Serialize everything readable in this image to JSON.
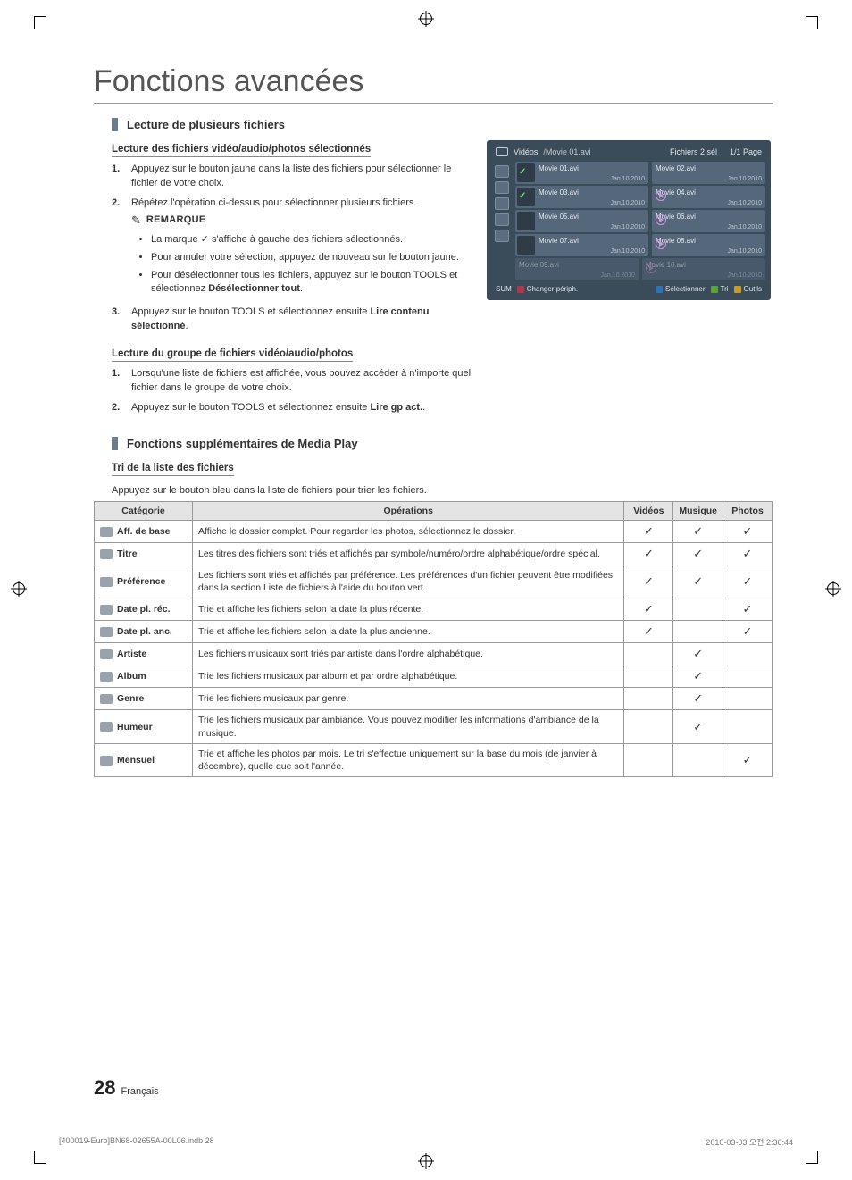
{
  "colors": {
    "section_bar": "#6b7c8c",
    "table_header_bg": "#e4e4e4",
    "table_border": "#999999",
    "screenshot_bg": "#3a4b5a",
    "screenshot_cell": "#55677a",
    "check_green": "#6be06b"
  },
  "header": {
    "title": "Fonctions avancées"
  },
  "section1": {
    "title": "Lecture de plusieurs fichiers",
    "sub1": "Lecture des fichiers vidéo/audio/photos sélectionnés",
    "steps1": {
      "n1": "1.",
      "s1": "Appuyez sur le bouton jaune dans la liste des fichiers pour sélectionner le fichier de votre choix.",
      "n2": "2.",
      "s2": "Répétez l'opération ci-dessus pour sélectionner plusieurs fichiers.",
      "remarque": "REMARQUE",
      "note1_pre": "La marque ",
      "note1_post": " s'affiche à gauche des fichiers sélectionnés.",
      "note2": "Pour annuler votre sélection, appuyez de nouveau sur le bouton jaune.",
      "note3_pre": "Pour désélectionner tous les fichiers, appuyez sur le bouton ",
      "note3_tools": "TOOLS",
      "note3_mid": " et sélectionnez ",
      "note3_b": "Désélectionner tout",
      "note3_post": ".",
      "n3": "3.",
      "s3_pre": "Appuyez sur le bouton ",
      "s3_tools": "TOOLS",
      "s3_mid": " et sélectionnez ensuite ",
      "s3_b": "Lire contenu sélectionné",
      "s3_post": "."
    },
    "sub2": "Lecture du groupe de fichiers vidéo/audio/photos",
    "steps2": {
      "n1": "1.",
      "s1": "Lorsqu'une liste de fichiers est affichée, vous pouvez accéder à n'importe quel fichier dans le groupe de votre choix.",
      "n2": "2.",
      "s2_pre": "Appuyez sur le bouton ",
      "s2_tools": "TOOLS",
      "s2_mid": " et sélectionnez ensuite ",
      "s2_b": "Lire gp act.",
      "s2_post": "."
    }
  },
  "screenshot": {
    "top": {
      "videos": "Vidéos",
      "path": "/Movie 01.avi",
      "sel": "Fichiers 2 sél",
      "page": "1/1 Page"
    },
    "rows": [
      {
        "l": "Movie 01.avi",
        "ld": "Jan.10.2010",
        "lthumb": true,
        "ltick": true,
        "r": "Movie 02.avi",
        "rd": "Jan.10.2010",
        "rplay": false
      },
      {
        "l": "Movie 03.avi",
        "ld": "Jan.10.2010",
        "lthumb": true,
        "ltick": true,
        "r": "Movie 04.avi",
        "rd": "Jan.10.2010",
        "rplay": true
      },
      {
        "l": "Movie 05.avi",
        "ld": "Jan.10.2010",
        "lthumb": true,
        "ltick": false,
        "r": "Movie 06.avi",
        "rd": "Jan.10.2010",
        "rplay": true
      },
      {
        "l": "Movie 07.avi",
        "ld": "Jan.10.2010",
        "lthumb": true,
        "ltick": false,
        "r": "Movie 08.avi",
        "rd": "Jan.10.2010",
        "rplay": true
      },
      {
        "l": "Movie 09.avi",
        "ld": "Jan.10.2010",
        "lthumb": false,
        "ltick": false,
        "dim": true,
        "r": "Movie 10.avi",
        "rd": "Jan.10.2010",
        "rplay": true,
        "rdim": true
      }
    ],
    "foot": {
      "sum": "SUM",
      "change": "Changer périph.",
      "select": "Sélectionner",
      "tri": "Tri",
      "tools": "Outils",
      "c_change": "#b7324b",
      "c_select": "#2f72b5",
      "c_tri": "#5aa33a",
      "c_tools": "#c79a2a"
    }
  },
  "section2": {
    "title": "Fonctions supplémentaires de Media Play"
  },
  "table": {
    "heading": "Tri de la liste des fichiers",
    "intro": "Appuyez sur le bouton bleu dans la liste de fichiers pour trier les fichiers.",
    "headers": {
      "cat": "Catégorie",
      "op": "Opérations",
      "vid": "Vidéos",
      "mus": "Musique",
      "pho": "Photos"
    },
    "check": "✓",
    "rows": [
      {
        "cat": "Aff. de base",
        "op": "Affiche le dossier complet. Pour regarder les photos, sélectionnez le dossier.",
        "v": true,
        "m": true,
        "p": true
      },
      {
        "cat": "Titre",
        "op": "Les titres des fichiers sont triés et affichés par symbole/numéro/ordre alphabétique/ordre spécial.",
        "v": true,
        "m": true,
        "p": true
      },
      {
        "cat": "Préférence",
        "op": "Les fichiers sont triés et affichés par préférence. Les préférences d'un fichier peuvent être modifiées dans la section Liste de fichiers à l'aide du bouton vert.",
        "v": true,
        "m": true,
        "p": true
      },
      {
        "cat": "Date pl. réc.",
        "op": "Trie et affiche les fichiers selon la date la plus récente.",
        "v": true,
        "m": false,
        "p": true
      },
      {
        "cat": "Date pl. anc.",
        "op": "Trie et affiche les fichiers selon la date la plus ancienne.",
        "v": true,
        "m": false,
        "p": true
      },
      {
        "cat": "Artiste",
        "op": "Les fichiers musicaux sont triés par artiste dans l'ordre alphabétique.",
        "v": false,
        "m": true,
        "p": false
      },
      {
        "cat": "Album",
        "op": "Trie les fichiers musicaux par album et par ordre alphabétique.",
        "v": false,
        "m": true,
        "p": false
      },
      {
        "cat": "Genre",
        "op": "Trie les fichiers musicaux par genre.",
        "v": false,
        "m": true,
        "p": false
      },
      {
        "cat": "Humeur",
        "op": "Trie les fichiers musicaux par ambiance. Vous pouvez modifier les informations d'ambiance de la musique.",
        "v": false,
        "m": true,
        "p": false
      },
      {
        "cat": "Mensuel",
        "op": "Trie et affiche les photos par mois. Le tri s'effectue uniquement sur la base du mois (de janvier à décembre), quelle que soit l'année.",
        "v": false,
        "m": false,
        "p": true
      }
    ]
  },
  "footer": {
    "pagenum": "28",
    "lang": "Français"
  },
  "docfoot": {
    "left": "[400019-Euro]BN68-02655A-00L06.indb   28",
    "right": "2010-03-03   오전 2:36:44"
  }
}
